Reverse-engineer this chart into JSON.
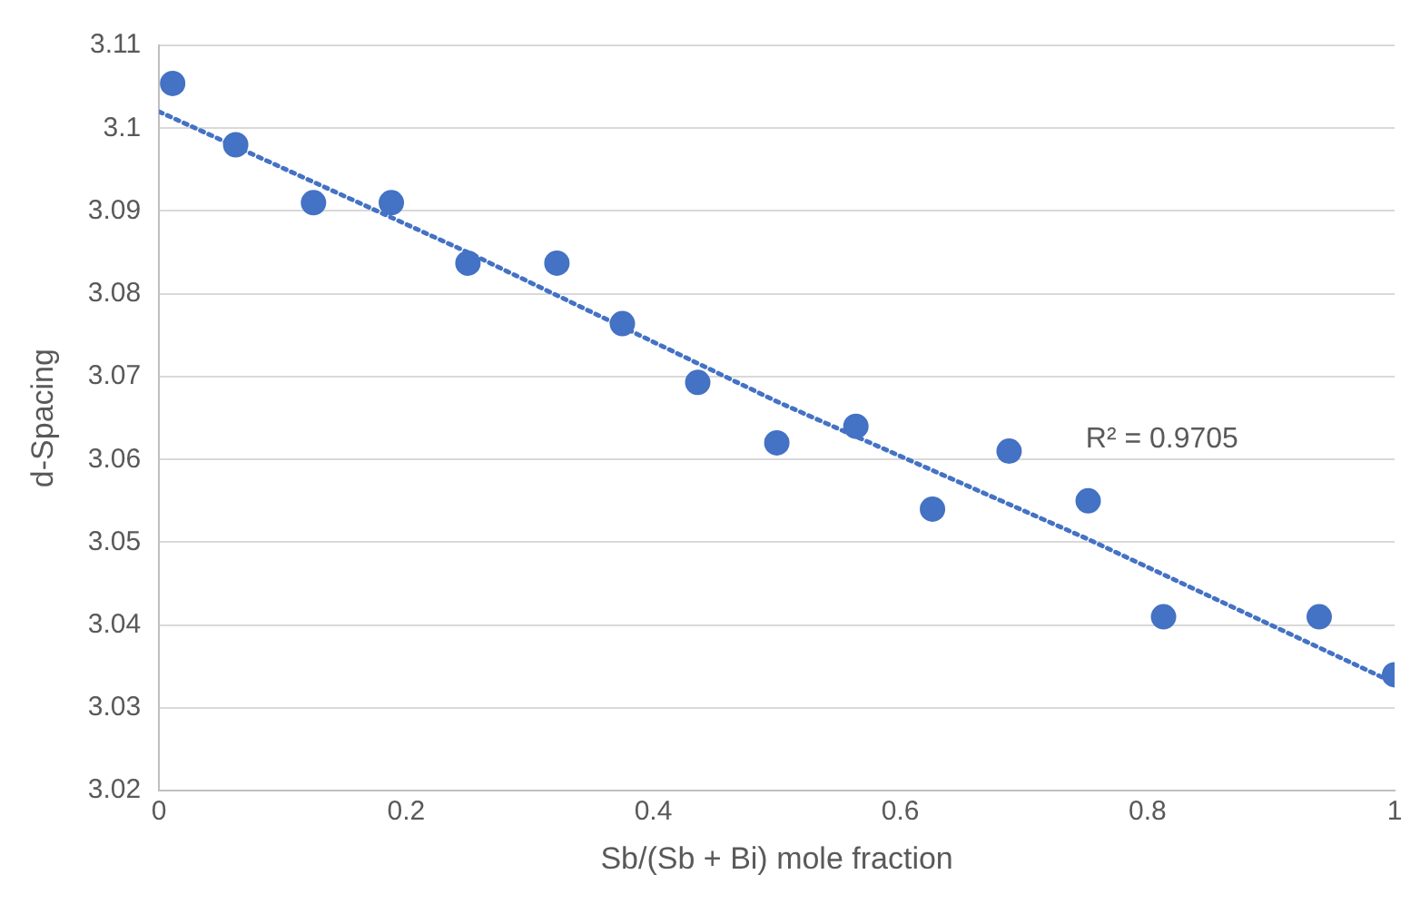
{
  "chart_data": {
    "type": "scatter",
    "xlabel": "Sb/(Sb + Bi) mole fraction",
    "ylabel": "d-Spacing",
    "series": [
      {
        "color": "#4472c4",
        "marker": "circle",
        "x": [
          0.011,
          0.062,
          0.125,
          0.188,
          0.25,
          0.322,
          0.375,
          0.436,
          0.5,
          0.564,
          0.626,
          0.688,
          0.752,
          0.813,
          0.939,
          1.0
        ],
        "values": [
          3.1054,
          3.098,
          3.091,
          3.091,
          3.0837,
          3.0837,
          3.0764,
          3.0693,
          3.062,
          3.064,
          3.054,
          3.061,
          3.055,
          3.041,
          3.041,
          3.034
        ]
      },
      {
        "type": "line",
        "color": "#4472c4",
        "marker": "none",
        "line_style": "dotted",
        "x": [
          0,
          0.25,
          0.5,
          0.75,
          1
        ],
        "values": [
          3.102,
          3.085,
          3.067,
          3.0505,
          3.033
        ]
      }
    ],
    "xlim": [
      0,
      1
    ],
    "xticks": [
      0,
      0.2,
      0.4,
      0.6,
      0.8,
      1
    ],
    "ylim": [
      3.02,
      3.11
    ],
    "yticks": [
      3.02,
      3.03,
      3.04,
      3.05,
      3.06,
      3.07,
      3.08,
      3.09,
      3.1,
      3.11
    ],
    "grid": "y",
    "legend": false,
    "annotations": [
      "R² = 0.9705"
    ]
  }
}
